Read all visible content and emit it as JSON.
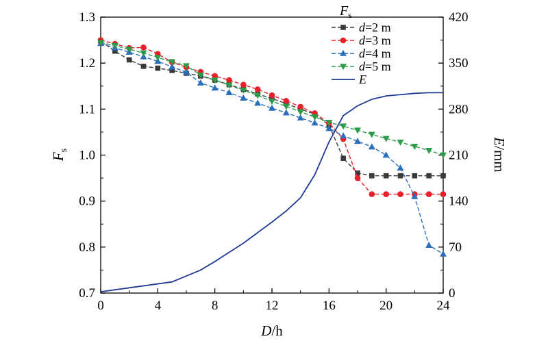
{
  "chart_data": {
    "type": "line",
    "x": [
      0,
      1,
      2,
      3,
      4,
      5,
      6,
      7,
      8,
      9,
      10,
      11,
      12,
      13,
      14,
      15,
      16,
      17,
      18,
      19,
      20,
      21,
      22,
      23,
      24
    ],
    "xlabel": {
      "var": "D",
      "unit": "/h"
    },
    "ylabel_left": {
      "var": "F",
      "sub": "s"
    },
    "ylabel_right": {
      "var": "E",
      "unit": "/mm"
    },
    "xlim": [
      0,
      24
    ],
    "xticks": [
      "0",
      "4",
      "8",
      "12",
      "16",
      "20",
      "24"
    ],
    "ylim_left": [
      0.7,
      1.3
    ],
    "yticks_left": [
      "0.7",
      "0.8",
      "0.9",
      "1.0",
      "1.1",
      "1.2",
      "1.3"
    ],
    "ylim_right": [
      0,
      420
    ],
    "yticks_right": [
      "0",
      "70",
      "140",
      "210",
      "280",
      "350",
      "420"
    ],
    "grid": false,
    "legend": {
      "placement": "top-right",
      "title_var": "F",
      "title_sub": "s",
      "entries": [
        {
          "var": "d",
          "text": "=2 m"
        },
        {
          "var": "d",
          "text": "=3 m"
        },
        {
          "var": "d",
          "text": "=4 m"
        },
        {
          "var": "d",
          "text": "=5 m"
        },
        {
          "var": "E",
          "text": ""
        }
      ]
    },
    "series": [
      {
        "name": "d=2 m",
        "axis": "left",
        "color": "#3a3a3a",
        "marker": "square",
        "dash": true,
        "values": [
          1.248,
          1.226,
          1.207,
          1.193,
          1.189,
          1.184,
          1.178,
          1.172,
          1.163,
          1.153,
          1.143,
          1.133,
          1.123,
          1.112,
          1.1,
          1.089,
          1.065,
          0.993,
          0.961,
          0.955,
          0.955,
          0.955,
          0.955,
          0.955,
          0.955
        ]
      },
      {
        "name": "d=3 m",
        "axis": "left",
        "color": "#e8202a",
        "marker": "circle",
        "dash": true,
        "values": [
          1.25,
          1.242,
          1.233,
          1.234,
          1.22,
          1.202,
          1.191,
          1.181,
          1.172,
          1.163,
          1.153,
          1.143,
          1.13,
          1.118,
          1.105,
          1.091,
          1.07,
          1.035,
          0.95,
          0.915,
          0.915,
          0.915,
          0.915,
          0.915,
          0.915
        ]
      },
      {
        "name": "d=4 m",
        "axis": "left",
        "color": "#2a6ebc",
        "marker": "triangle-up",
        "dash": true,
        "values": [
          1.243,
          1.233,
          1.224,
          1.214,
          1.204,
          1.192,
          1.18,
          1.157,
          1.146,
          1.136,
          1.124,
          1.113,
          1.102,
          1.092,
          1.081,
          1.07,
          1.058,
          1.042,
          1.03,
          1.018,
          1.0,
          0.972,
          0.91,
          0.804,
          0.785
        ]
      },
      {
        "name": "d=5 m",
        "axis": "left",
        "color": "#2e9b4a",
        "marker": "triangle-down",
        "dash": true,
        "values": [
          1.245,
          1.238,
          1.23,
          1.222,
          1.212,
          1.203,
          1.194,
          1.174,
          1.163,
          1.152,
          1.141,
          1.13,
          1.117,
          1.106,
          1.094,
          1.083,
          1.071,
          1.063,
          1.054,
          1.045,
          1.036,
          1.028,
          1.019,
          1.01,
          1.0
        ]
      },
      {
        "name": "E",
        "axis": "right",
        "color": "#1f3a93",
        "marker": "none",
        "dash": false,
        "values": [
          2,
          5,
          8,
          11,
          14,
          17,
          26,
          35,
          48,
          62,
          76,
          92,
          108,
          125,
          145,
          180,
          230,
          270,
          285,
          295,
          300,
          302,
          304,
          305,
          305
        ]
      }
    ]
  }
}
